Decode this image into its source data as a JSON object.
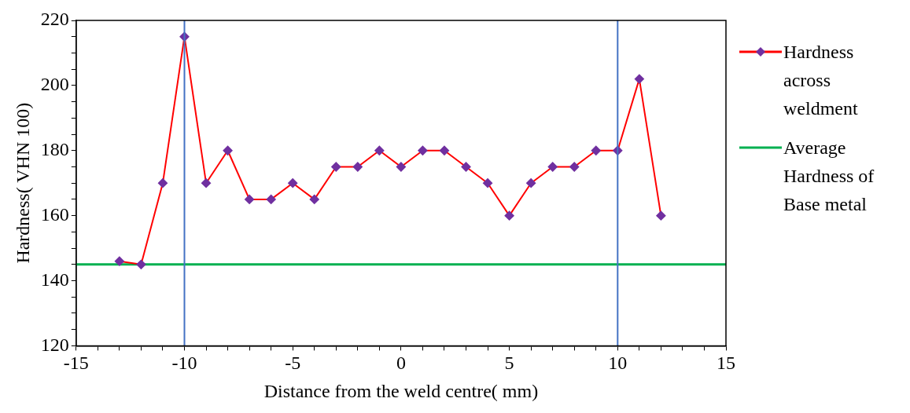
{
  "chart_data": {
    "type": "line",
    "xlabel": "Distance from the weld centre( mm)",
    "ylabel": "Hardness( VHN 100)",
    "series": [
      {
        "name": "Hardness across weldment",
        "color": "#ff0000",
        "marker": "diamond",
        "x": [
          -13,
          -12,
          -11,
          -10,
          -9,
          -8,
          -7,
          -6,
          -5,
          -4,
          -3,
          -2,
          -1,
          0,
          1,
          2,
          3,
          4,
          5,
          6,
          7,
          8,
          9,
          10,
          11,
          12
        ],
        "values": [
          146,
          145,
          170,
          215,
          170,
          180,
          165,
          165,
          170,
          165,
          175,
          175,
          180,
          175,
          180,
          180,
          175,
          170,
          160,
          170,
          175,
          175,
          180,
          180,
          202,
          160
        ],
        "colors": [
          "#7030a0",
          "#7030a0",
          "#7030a0",
          "#7030a0",
          "#7030a0",
          "#7030a0",
          "#7030a0",
          "#7030a0",
          "#7030a0",
          "#7030a0",
          "#7030a0",
          "#7030a0",
          "#7030a0",
          "#7030a0",
          "#7030a0",
          "#7030a0",
          "#7030a0",
          "#7030a0",
          "#7030a0",
          "#7030a0",
          "#7030a0",
          "#7030a0",
          "#7030a0",
          "#7030a0",
          "#7030a0",
          "#7030a0"
        ]
      },
      {
        "name": "Average Hardness of Base metal",
        "color": "#00b050",
        "marker": "none",
        "x": [
          -15,
          15
        ],
        "values": [
          145,
          145
        ]
      }
    ],
    "ref_lines": [
      {
        "axis": "x",
        "value": -10,
        "color": "#4472c4"
      },
      {
        "axis": "x",
        "value": 10,
        "color": "#4472c4"
      }
    ],
    "xlim": [
      -15,
      15
    ],
    "xticks": [
      -15,
      {
        "value": -14,
        "label": null
      },
      {
        "value": -13,
        "label": null
      },
      {
        "value": -12,
        "label": null
      },
      {
        "value": -11,
        "label": null
      },
      -10,
      {
        "value": -9,
        "label": null
      },
      {
        "value": -8,
        "label": null
      },
      {
        "value": -7,
        "label": null
      },
      {
        "value": -6,
        "label": null
      },
      -5,
      {
        "value": -4,
        "label": null
      },
      {
        "value": -3,
        "label": null
      },
      {
        "value": -2,
        "label": null
      },
      {
        "value": -1,
        "label": null
      },
      0,
      {
        "value": 1,
        "label": null
      },
      {
        "value": 2,
        "label": null
      },
      {
        "value": 3,
        "label": null
      },
      {
        "value": 4,
        "label": null
      },
      5,
      {
        "value": 6,
        "label": null
      },
      {
        "value": 7,
        "label": null
      },
      {
        "value": 8,
        "label": null
      },
      {
        "value": 9,
        "label": null
      },
      10,
      {
        "value": 11,
        "label": null
      },
      {
        "value": 12,
        "label": null
      },
      {
        "value": 13,
        "label": null
      },
      {
        "value": 14,
        "label": null
      },
      15
    ],
    "ylim": [
      120,
      220
    ],
    "yticks": [
      120,
      {
        "value": 125,
        "label": null
      },
      {
        "value": 130,
        "label": null
      },
      {
        "value": 135,
        "label": null
      },
      140,
      {
        "value": 145,
        "label": null
      },
      {
        "value": 150,
        "label": null
      },
      {
        "value": 155,
        "label": null
      },
      160,
      {
        "value": 165,
        "label": null
      },
      {
        "value": 170,
        "label": null
      },
      {
        "value": 175,
        "label": null
      },
      180,
      {
        "value": 185,
        "label": null
      },
      {
        "value": 190,
        "label": null
      },
      {
        "value": 195,
        "label": null
      },
      200,
      {
        "value": 205,
        "label": null
      },
      {
        "value": 210,
        "label": null
      },
      {
        "value": 215,
        "label": null
      },
      220
    ],
    "grid": false,
    "legend": "right",
    "line_style": "solid"
  }
}
